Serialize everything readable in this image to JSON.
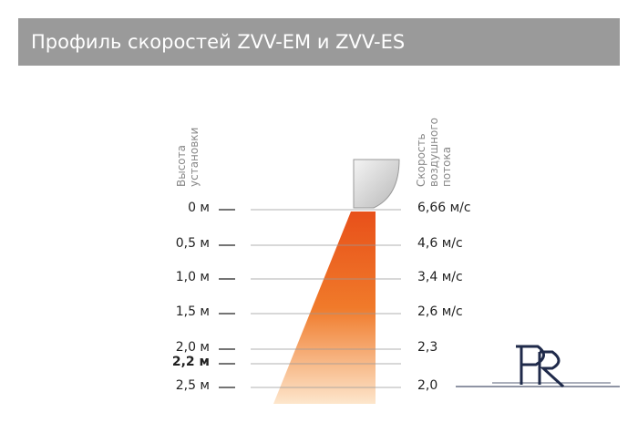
{
  "header": {
    "title": "Профиль скоростей ZVV-EM и ZVV-ES"
  },
  "axes": {
    "height_label": [
      "Высота",
      "установки"
    ],
    "speed_label": [
      "Скорость",
      "воздушного",
      "потока"
    ]
  },
  "rows": [
    {
      "height": "0 м",
      "speed": "6,66 м/с",
      "bold": false
    },
    {
      "height": "0,5 м",
      "speed": "4,6 м/с",
      "bold": false
    },
    {
      "height": "1,0 м",
      "speed": "3,4 м/с",
      "bold": false
    },
    {
      "height": "1,5 м",
      "speed": "2,6 м/с",
      "bold": false
    },
    {
      "height": "2,0 м",
      "speed": "2,3",
      "bold": false
    },
    {
      "height": "2,2 м",
      "speed": null,
      "bold": true
    },
    {
      "height": "2,5 м",
      "speed": "2,0",
      "bold": false
    }
  ]
}
